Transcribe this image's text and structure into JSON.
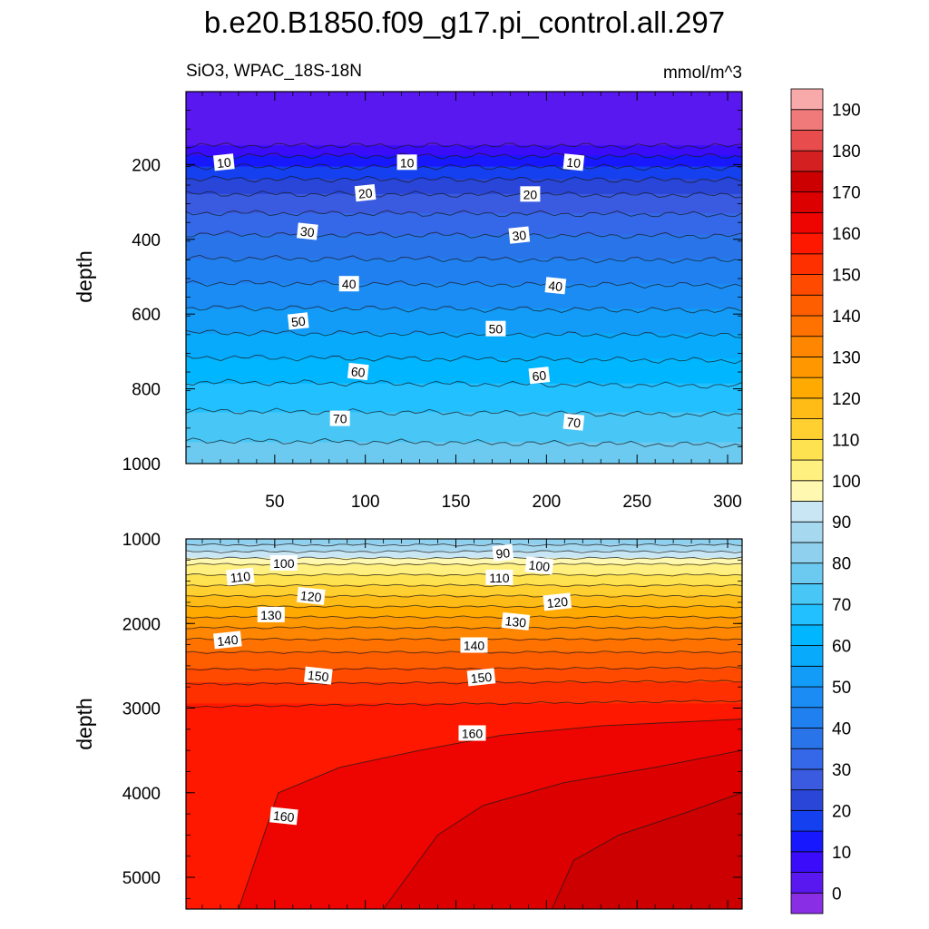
{
  "title": "b.e20.B1850.f09_g17.pi_control.all.297",
  "left_subtitle": "SiO3, WPAC_18S-18N",
  "right_subtitle": "mmol/m^3",
  "chart_data": [
    {
      "type": "contour",
      "panel": "upper",
      "ylabel": "depth",
      "xlim": [
        1,
        308
      ],
      "ylim": [
        1000,
        5
      ],
      "x_ticks": [
        50,
        100,
        150,
        200,
        250,
        300
      ],
      "y_ticks": [
        200,
        400,
        600,
        800,
        1000
      ],
      "x_tick_labels_shown": true,
      "y_reversed": true,
      "profile": {
        "depth": [
          5,
          130,
          140,
          160,
          200,
          240,
          280,
          320,
          400,
          480,
          560,
          640,
          720,
          800,
          880,
          960,
          1000
        ],
        "value": [
          0,
          0,
          3,
          7,
          14,
          20,
          25,
          29,
          36,
          42,
          48,
          54,
          60,
          66,
          71,
          76,
          78
        ]
      },
      "contour_labels": [
        {
          "text": "10",
          "x": 22,
          "depth": 195
        },
        {
          "text": "10",
          "x": 123,
          "depth": 195
        },
        {
          "text": "10",
          "x": 215,
          "depth": 195
        },
        {
          "text": "20",
          "x": 100,
          "depth": 277
        },
        {
          "text": "20",
          "x": 191,
          "depth": 280
        },
        {
          "text": "30",
          "x": 68,
          "depth": 380
        },
        {
          "text": "30",
          "x": 185,
          "depth": 390
        },
        {
          "text": "40",
          "x": 91,
          "depth": 520
        },
        {
          "text": "40",
          "x": 205,
          "depth": 525
        },
        {
          "text": "50",
          "x": 63,
          "depth": 620
        },
        {
          "text": "50",
          "x": 172,
          "depth": 640
        },
        {
          "text": "60",
          "x": 96,
          "depth": 755
        },
        {
          "text": "60",
          "x": 196,
          "depth": 765
        },
        {
          "text": "70",
          "x": 86,
          "depth": 880
        },
        {
          "text": "70",
          "x": 215,
          "depth": 890
        }
      ]
    },
    {
      "type": "contour",
      "panel": "lower",
      "ylabel": "depth",
      "xlim": [
        1,
        308
      ],
      "ylim": [
        5375,
        1000
      ],
      "y_ticks": [
        1000,
        2000,
        3000,
        4000,
        5000
      ],
      "x_tick_labels_shown": false,
      "y_reversed": true,
      "profile": {
        "depth": [
          1000,
          1100,
          1200,
          1300,
          1500,
          1700,
          1900,
          2100,
          2300,
          2500,
          2700,
          2950,
          5375
        ],
        "value": [
          80,
          87,
          93,
          100,
          108,
          116,
          124,
          132,
          139,
          144,
          150,
          155,
          158
        ]
      },
      "deep_contours": [
        {
          "level": 160,
          "x": [
            1,
            30,
            52,
            86,
            130,
            175,
            230,
            308
          ],
          "depth": [
            5375,
            5375,
            4000,
            3700,
            3500,
            3320,
            3210,
            3130
          ]
        },
        {
          "level": 165,
          "x": [
            110,
            140,
            165,
            210,
            260,
            308
          ],
          "depth": [
            5375,
            4500,
            4150,
            3880,
            3700,
            3500
          ]
        },
        {
          "level": 170,
          "x": [
            203,
            215,
            240,
            275,
            308
          ],
          "depth": [
            5375,
            4800,
            4500,
            4250,
            4000
          ]
        }
      ],
      "contour_labels": [
        {
          "text": "90",
          "x": 176,
          "depth": 1170
        },
        {
          "text": "100",
          "x": 55,
          "depth": 1290
        },
        {
          "text": "100",
          "x": 196,
          "depth": 1320
        },
        {
          "text": "110",
          "x": 31,
          "depth": 1450
        },
        {
          "text": "110",
          "x": 174,
          "depth": 1460
        },
        {
          "text": "120",
          "x": 70,
          "depth": 1680
        },
        {
          "text": "120",
          "x": 206,
          "depth": 1750
        },
        {
          "text": "130",
          "x": 48,
          "depth": 1900
        },
        {
          "text": "130",
          "x": 183,
          "depth": 1980
        },
        {
          "text": "140",
          "x": 24,
          "depth": 2200
        },
        {
          "text": "140",
          "x": 160,
          "depth": 2260
        },
        {
          "text": "150",
          "x": 74,
          "depth": 2620
        },
        {
          "text": "150",
          "x": 164,
          "depth": 2640
        },
        {
          "text": "160",
          "x": 159,
          "depth": 3300
        },
        {
          "text": "160",
          "x": 55,
          "depth": 4280
        }
      ]
    }
  ],
  "colorbar": {
    "levels": [
      0,
      5,
      10,
      15,
      20,
      25,
      30,
      35,
      40,
      45,
      50,
      55,
      60,
      65,
      70,
      75,
      80,
      85,
      90,
      95,
      100,
      105,
      110,
      115,
      120,
      125,
      130,
      135,
      140,
      145,
      150,
      155,
      160,
      165,
      170,
      175,
      180,
      185,
      190
    ],
    "label_values": [
      0,
      10,
      20,
      30,
      40,
      50,
      60,
      70,
      80,
      90,
      100,
      110,
      120,
      130,
      140,
      150,
      160,
      170,
      180,
      190
    ],
    "colors": [
      "#8a2ee6",
      "#5a18f0",
      "#3a0cfa",
      "#1818ff",
      "#1440f0",
      "#2a46d8",
      "#3a5ae0",
      "#3468e8",
      "#2a74ea",
      "#2080f0",
      "#1a8cf4",
      "#129cf8",
      "#08aafc",
      "#00b6ff",
      "#22c0ff",
      "#48c6f6",
      "#6ccaf0",
      "#8ed0ee",
      "#a6d8f0",
      "#c8e6f4",
      "#fff8b0",
      "#fff080",
      "#ffe250",
      "#ffd030",
      "#ffbc16",
      "#ffaa00",
      "#ff9800",
      "#ff8600",
      "#ff7200",
      "#ff5e00",
      "#ff4a00",
      "#ff3000",
      "#ff1800",
      "#ee0400",
      "#dd0000",
      "#cc0000",
      "#d42020",
      "#e84c4c",
      "#f07a7a",
      "#f8aaaa"
    ]
  }
}
